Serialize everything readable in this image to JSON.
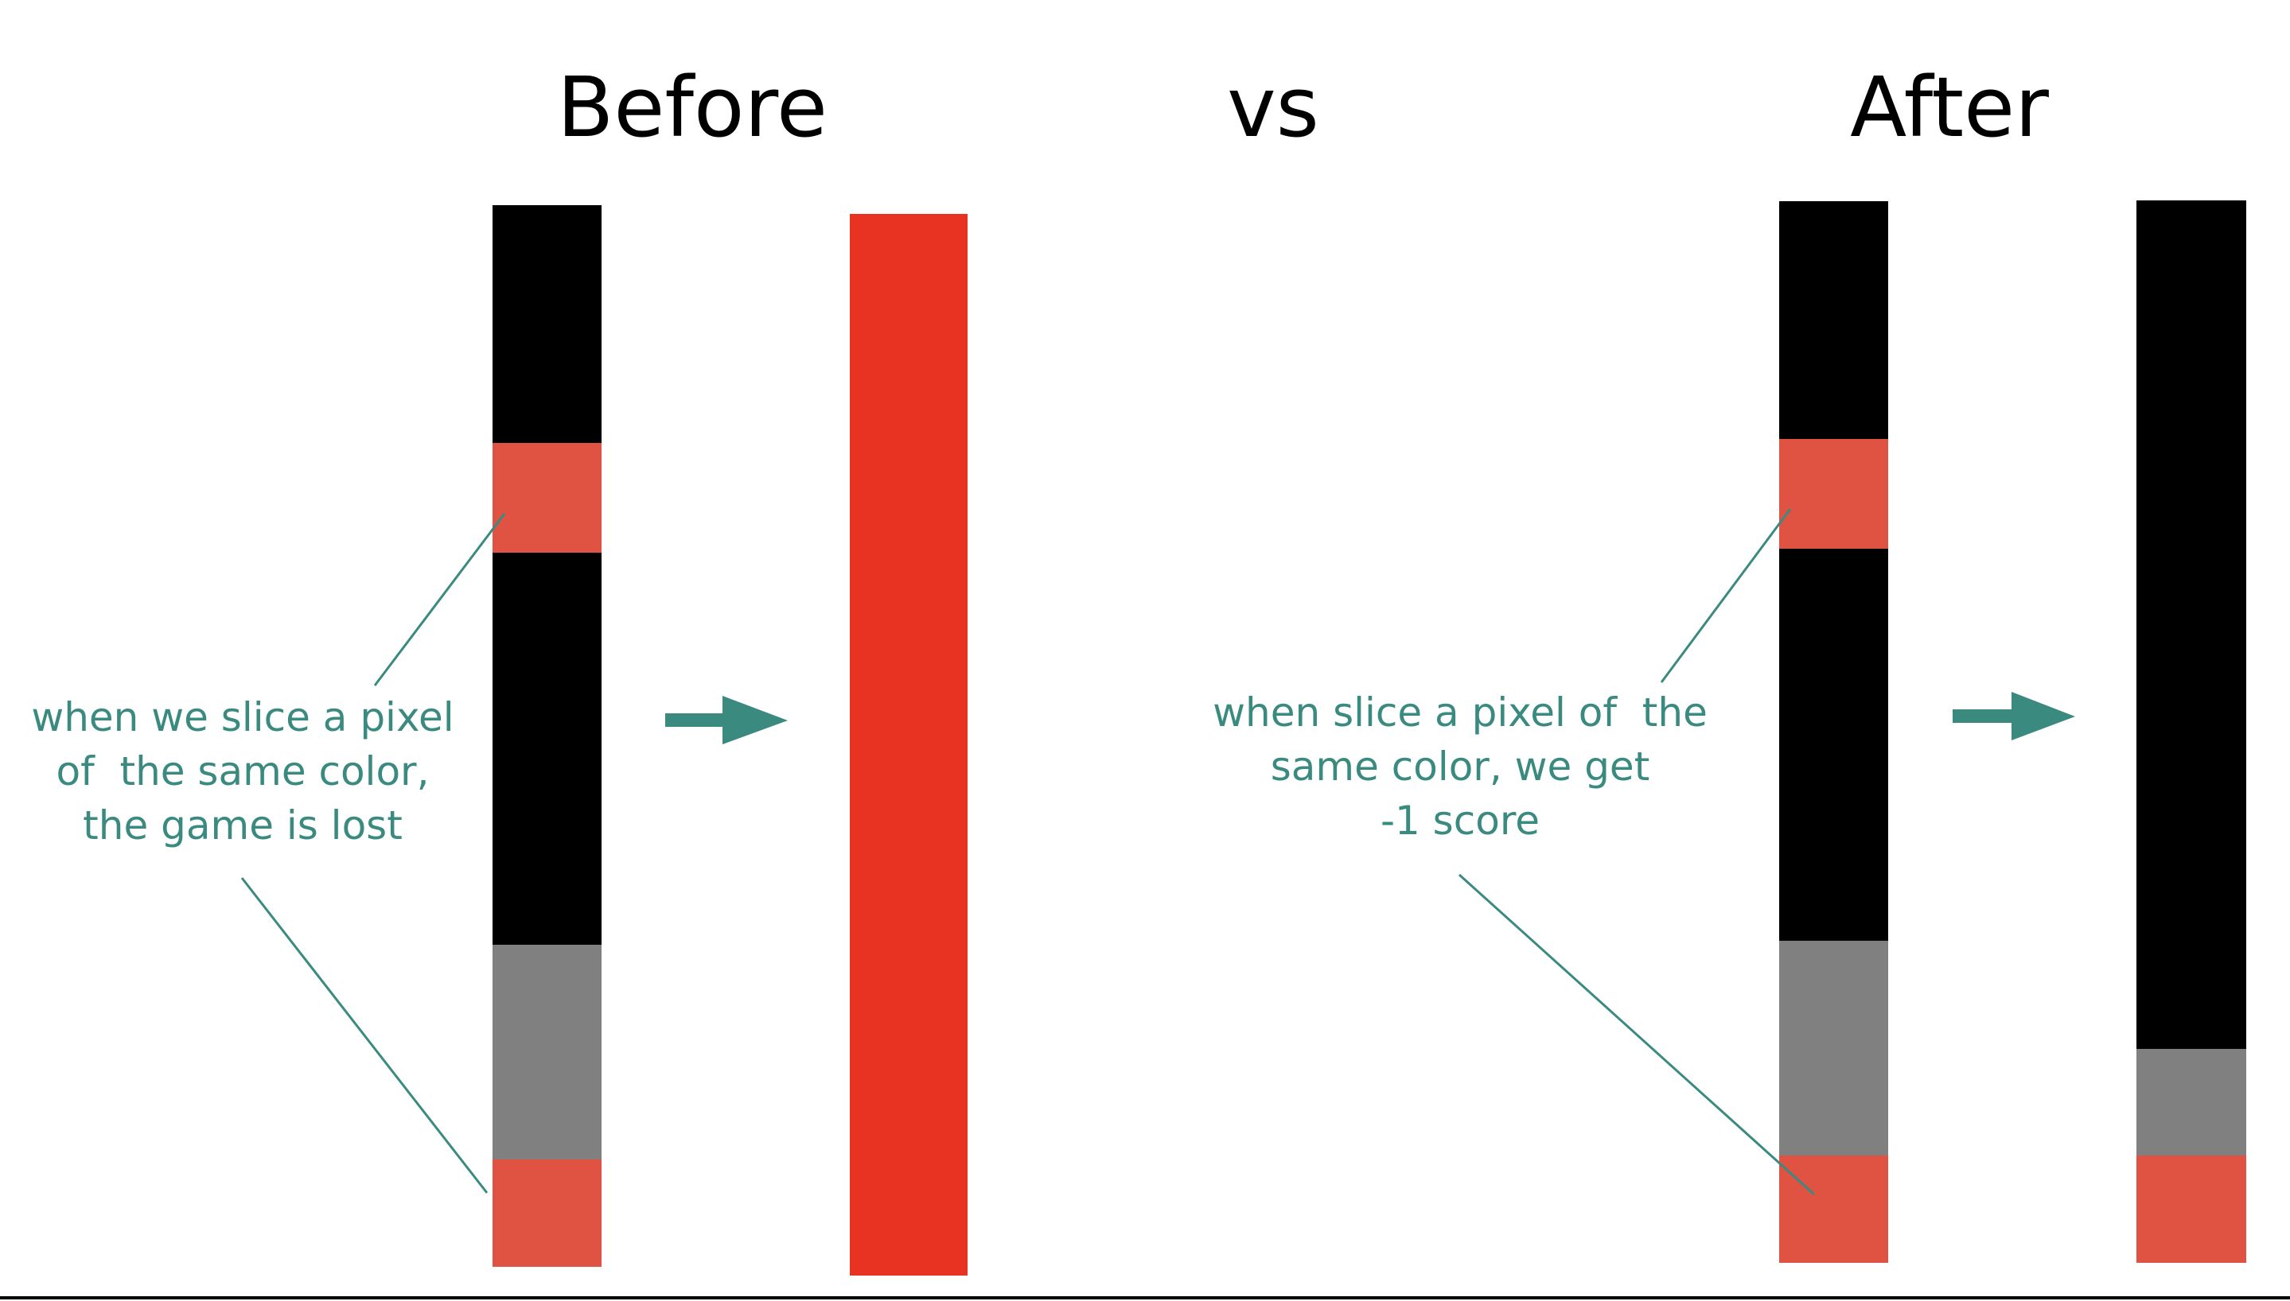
{
  "titles": {
    "before": "Before",
    "vs": "vs",
    "after": "After"
  },
  "notes": {
    "before": "when we slice a pixel\nof  the same color,\nthe game is lost",
    "after": "when slice a pixel of  the\nsame color, we get\n-1 score"
  },
  "colors": {
    "black": "#000000",
    "red": "#e05242",
    "bright_red": "#e83323",
    "gray": "#808080",
    "teal": "#3a8a80"
  },
  "strips": {
    "before": [
      "black",
      "red",
      "black",
      "gray",
      "red"
    ],
    "before_result": [
      "bright_red"
    ],
    "after": [
      "black",
      "red",
      "black",
      "gray",
      "red"
    ],
    "after_result": [
      "black",
      "gray",
      "red"
    ]
  }
}
